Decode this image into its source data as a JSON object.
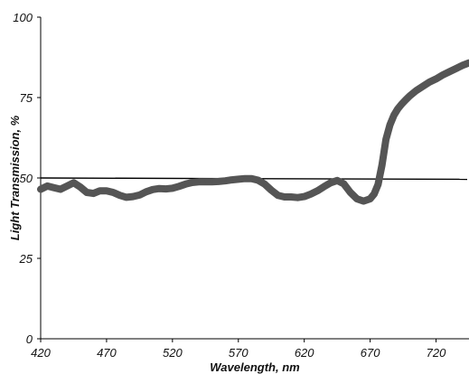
{
  "chart_data": {
    "type": "line",
    "title": "",
    "xlabel": "Wavelength, nm",
    "ylabel": "Light Transmission, %",
    "xlim": [
      420,
      745
    ],
    "ylim": [
      0,
      100
    ],
    "x_ticks": [
      420,
      470,
      520,
      570,
      620,
      670,
      720
    ],
    "y_ticks": [
      0,
      25,
      50,
      75,
      100
    ],
    "grid": false,
    "legend": "none",
    "reference_line": {
      "y": 50,
      "color": "#000000"
    },
    "series": [
      {
        "color": "#555555",
        "x": [
          420,
          425,
          430,
          435,
          440,
          445,
          450,
          455,
          460,
          465,
          470,
          475,
          480,
          485,
          490,
          495,
          500,
          505,
          510,
          515,
          520,
          525,
          530,
          535,
          540,
          545,
          550,
          555,
          560,
          565,
          570,
          575,
          580,
          585,
          590,
          595,
          600,
          605,
          610,
          615,
          620,
          625,
          630,
          635,
          640,
          645,
          650,
          655,
          660,
          665,
          670,
          673,
          676,
          679,
          682,
          685,
          688,
          691,
          694,
          697,
          700,
          705,
          710,
          715,
          720,
          725,
          730,
          735,
          740,
          745
        ],
        "values": [
          46.5,
          47.5,
          47,
          46.5,
          47.5,
          48.5,
          47.2,
          45.5,
          45.2,
          46,
          46,
          45.5,
          44.6,
          44,
          44.2,
          44.7,
          45.7,
          46.4,
          46.7,
          46.6,
          46.8,
          47.4,
          48.1,
          48.6,
          48.8,
          48.8,
          48.8,
          48.9,
          49.1,
          49.4,
          49.6,
          49.8,
          49.8,
          49.3,
          48.1,
          46.2,
          44.6,
          44.1,
          44.1,
          43.9,
          44.2,
          45,
          46,
          47.3,
          48.5,
          49.2,
          48.2,
          45.5,
          43.5,
          42.8,
          43.5,
          45,
          48,
          54,
          62,
          66.5,
          69.5,
          71.5,
          73,
          74.3,
          75.5,
          77.2,
          78.5,
          79.8,
          80.8,
          82,
          83,
          84,
          85,
          85.8
        ]
      }
    ]
  }
}
